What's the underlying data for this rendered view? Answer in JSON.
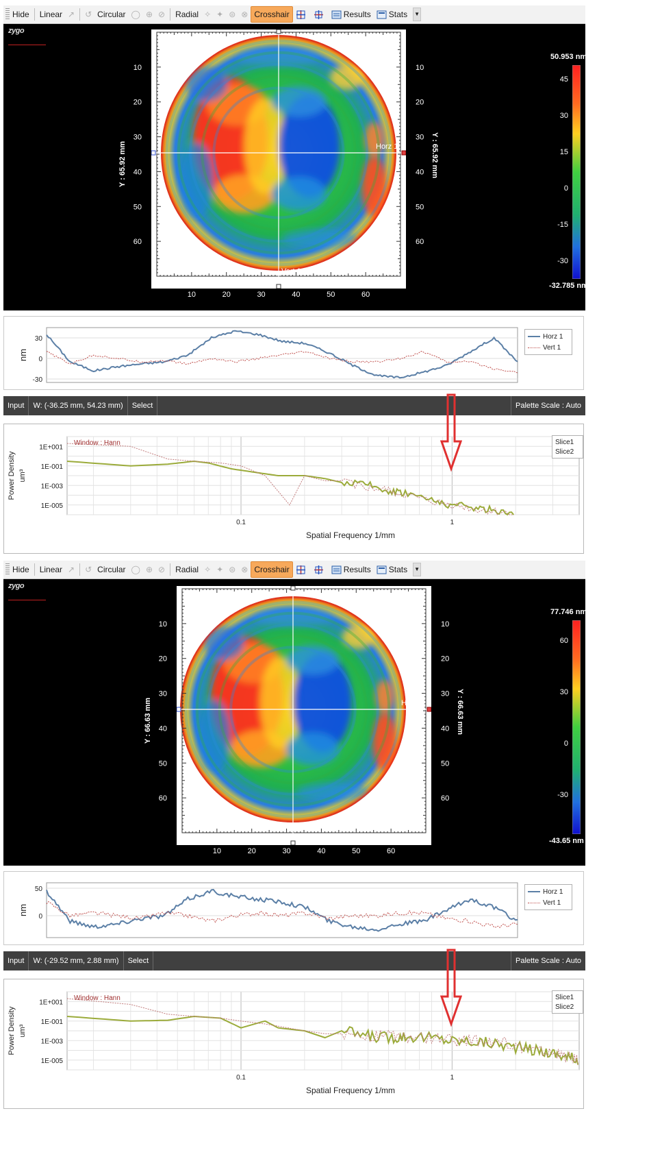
{
  "panels": [
    {
      "toolbar": {
        "hide": "Hide",
        "linear": "Linear",
        "circular": "Circular",
        "radial": "Radial",
        "crosshair": "Crosshair",
        "results": "Results",
        "stats": "Stats"
      },
      "map": {
        "logo": "zygo",
        "y_label_left": "Y : 65.92 mm",
        "y_label_right": "Y : 65.92 mm",
        "x_ticks": [
          "10",
          "20",
          "30",
          "40",
          "50",
          "60"
        ],
        "y_ticks": [
          "10",
          "20",
          "30",
          "40",
          "50",
          "60"
        ],
        "horz_label": "Horz 1",
        "vert_label": "Vert 1",
        "colorbar": {
          "max": "50.953 nm",
          "min": "-32.785 nm",
          "ticks": [
            "45",
            "30",
            "15",
            "0",
            "-15",
            "-30"
          ]
        }
      },
      "profile": {
        "ylabel": "nm",
        "y_ticks": [
          "30",
          "0",
          "-30"
        ],
        "legend": [
          "Horz 1",
          "Vert 1"
        ]
      },
      "status": {
        "input": "Input",
        "window": "W: (-36.25 mm, 54.23 mm)",
        "select": "Select",
        "palette": "Palette Scale : Auto"
      },
      "psd": {
        "window_label": "Window : Hann",
        "ylabel_top": "Power Density",
        "ylabel_bottom": "um³",
        "xlabel": "Spatial Frequency 1/mm",
        "y_ticks": [
          "1E+001",
          "1E-001",
          "1E-003",
          "1E-005"
        ],
        "x_ticks": [
          "0.1",
          "1"
        ],
        "legend": [
          "Slice1",
          "Slice2"
        ]
      }
    },
    {
      "toolbar": {
        "hide": "Hide",
        "linear": "Linear",
        "circular": "Circular",
        "radial": "Radial",
        "crosshair": "Crosshair",
        "results": "Results",
        "stats": "Stats"
      },
      "map": {
        "logo": "zygo",
        "y_label_left": "Y : 66.63 mm",
        "y_label_right": "Y : 66.63 mm",
        "x_ticks": [
          "10",
          "20",
          "30",
          "40",
          "50",
          "60"
        ],
        "y_ticks": [
          "10",
          "20",
          "30",
          "40",
          "50",
          "60"
        ],
        "horz_label": "Horz 1",
        "vert_label": "Vert 1",
        "colorbar": {
          "max": "77.746 nm",
          "min": "-43.65 nm",
          "ticks": [
            "60",
            "30",
            "0",
            "-30"
          ]
        }
      },
      "profile": {
        "ylabel": "nm",
        "y_ticks": [
          "50",
          "0"
        ],
        "legend": [
          "Horz 1",
          "Vert 1"
        ]
      },
      "status": {
        "input": "Input",
        "window": "W: (-29.52 mm, 2.88 mm)",
        "select": "Select",
        "palette": "Palette Scale : Auto"
      },
      "psd": {
        "window_label": "Window : Hann",
        "ylabel_top": "Power Density",
        "ylabel_bottom": "um³",
        "xlabel": "Spatial Frequency 1/mm",
        "y_ticks": [
          "1E+001",
          "1E-001",
          "1E-003",
          "1E-005"
        ],
        "x_ticks": [
          "0.1",
          "1"
        ],
        "legend": [
          "Slice1",
          "Slice2"
        ]
      }
    }
  ],
  "colors": {
    "horz": "#5b7fa6",
    "vert": "#c0504d",
    "slice1": "#9bab3a",
    "slice2": "#c07a7a",
    "crosshair_active": "#f7a95b",
    "arrow": "#e03030"
  },
  "chart_data": [
    {
      "type": "line",
      "title": "",
      "ylabel": "nm",
      "ylim": [
        -35,
        45
      ],
      "series": [
        {
          "name": "Horz 1",
          "x": [
            0,
            5,
            10,
            15,
            20,
            25,
            30,
            35,
            40,
            45,
            50,
            55,
            60,
            65,
            70,
            75,
            80,
            85,
            90,
            95,
            100
          ],
          "values": [
            35,
            -5,
            -18,
            -12,
            -8,
            -5,
            5,
            30,
            40,
            35,
            25,
            22,
            8,
            -10,
            -25,
            -28,
            -20,
            -10,
            10,
            30,
            -5
          ]
        },
        {
          "name": "Vert 1",
          "x": [
            0,
            5,
            10,
            15,
            20,
            25,
            30,
            35,
            40,
            45,
            50,
            55,
            60,
            65,
            70,
            75,
            80,
            85,
            90,
            95,
            100
          ],
          "values": [
            10,
            -8,
            5,
            0,
            -5,
            -3,
            -8,
            0,
            -5,
            0,
            5,
            10,
            0,
            -5,
            -5,
            0,
            10,
            -5,
            -5,
            -15,
            -20
          ]
        }
      ]
    },
    {
      "type": "line",
      "title": "",
      "xlabel": "Spatial Frequency 1/mm",
      "ylabel": "Power Density um³",
      "x_scale": "log",
      "xlim": [
        0.015,
        4
      ],
      "y_scale": "log",
      "ylim": [
        1e-06,
        100
      ],
      "series": [
        {
          "name": "Slice1",
          "x": [
            0.015,
            0.03,
            0.045,
            0.06,
            0.07,
            0.09,
            0.12,
            0.15,
            0.2,
            0.25,
            0.3,
            0.4,
            0.5,
            0.6,
            0.8,
            1.0,
            1.3,
            1.6,
            2.0
          ],
          "values": [
            0.3,
            0.1,
            0.15,
            0.3,
            0.2,
            0.05,
            0.02,
            0.01,
            0.01,
            0.005,
            0.002,
            0.001,
            0.0003,
            0.0002,
            3e-05,
            1e-05,
            5e-06,
            3e-06,
            1e-06
          ]
        },
        {
          "name": "Slice2",
          "x": [
            0.015,
            0.03,
            0.045,
            0.06,
            0.08,
            0.1,
            0.13,
            0.17,
            0.2,
            0.25,
            0.3,
            0.4,
            0.5,
            0.6,
            0.8,
            1.0,
            1.3,
            1.6,
            2.0
          ],
          "values": [
            20,
            10,
            0.5,
            0.3,
            0.2,
            0.1,
            0.01,
            1e-05,
            0.01,
            0.003,
            0.003,
            0.0005,
            0.0003,
            0.0001,
            2e-05,
            1e-05,
            3e-06,
            2e-06,
            1e-06
          ]
        }
      ]
    },
    {
      "type": "line",
      "title": "",
      "ylabel": "nm",
      "ylim": [
        -40,
        60
      ],
      "series": [
        {
          "name": "Horz 1",
          "x": [
            0,
            5,
            10,
            15,
            20,
            25,
            30,
            35,
            40,
            45,
            50,
            55,
            60,
            65,
            70,
            75,
            80,
            85,
            90,
            95,
            100
          ],
          "values": [
            45,
            -10,
            -20,
            -15,
            -5,
            0,
            30,
            45,
            35,
            30,
            25,
            15,
            -10,
            -20,
            -25,
            -15,
            -10,
            10,
            30,
            15,
            -10
          ]
        },
        {
          "name": "Vert 1",
          "x": [
            0,
            5,
            10,
            15,
            20,
            25,
            30,
            35,
            40,
            45,
            50,
            55,
            60,
            65,
            70,
            75,
            80,
            85,
            90,
            95,
            100
          ],
          "values": [
            25,
            0,
            5,
            0,
            -5,
            5,
            0,
            -10,
            0,
            5,
            0,
            5,
            -5,
            0,
            0,
            5,
            5,
            -5,
            -10,
            -20,
            -15
          ]
        }
      ]
    },
    {
      "type": "line",
      "title": "",
      "xlabel": "Spatial Frequency 1/mm",
      "ylabel": "Power Density um³",
      "x_scale": "log",
      "xlim": [
        0.015,
        4
      ],
      "y_scale": "log",
      "ylim": [
        1e-06,
        100
      ],
      "series": [
        {
          "name": "Slice1",
          "x": [
            0.015,
            0.03,
            0.045,
            0.06,
            0.08,
            0.1,
            0.13,
            0.15,
            0.2,
            0.25,
            0.3,
            0.4,
            0.5,
            0.6,
            0.8,
            1.0,
            1.3,
            1.6,
            2.0,
            2.5,
            3.0,
            3.5,
            4.0
          ],
          "values": [
            0.3,
            0.1,
            0.12,
            0.3,
            0.2,
            0.02,
            0.1,
            0.02,
            0.01,
            0.002,
            0.01,
            0.003,
            0.002,
            0.003,
            0.002,
            0.001,
            0.0008,
            0.0005,
            0.0002,
            0.0001,
            5e-05,
            2e-05,
            1e-05
          ]
        },
        {
          "name": "Slice2",
          "x": [
            0.015,
            0.03,
            0.045,
            0.06,
            0.08,
            0.1,
            0.13,
            0.15,
            0.2,
            0.25,
            0.3,
            0.4,
            0.5,
            0.6,
            0.8,
            1.0,
            1.3,
            1.6,
            2.0,
            2.5,
            3.0,
            3.5,
            4.0
          ],
          "values": [
            20,
            5,
            0.5,
            0.3,
            0.2,
            0.1,
            0.05,
            0.03,
            0.01,
            0.005,
            0.005,
            0.003,
            0.003,
            0.002,
            0.002,
            0.001,
            0.001,
            0.0008,
            0.0003,
            0.0001,
            5e-05,
            2e-05,
            1e-05
          ]
        }
      ]
    }
  ]
}
